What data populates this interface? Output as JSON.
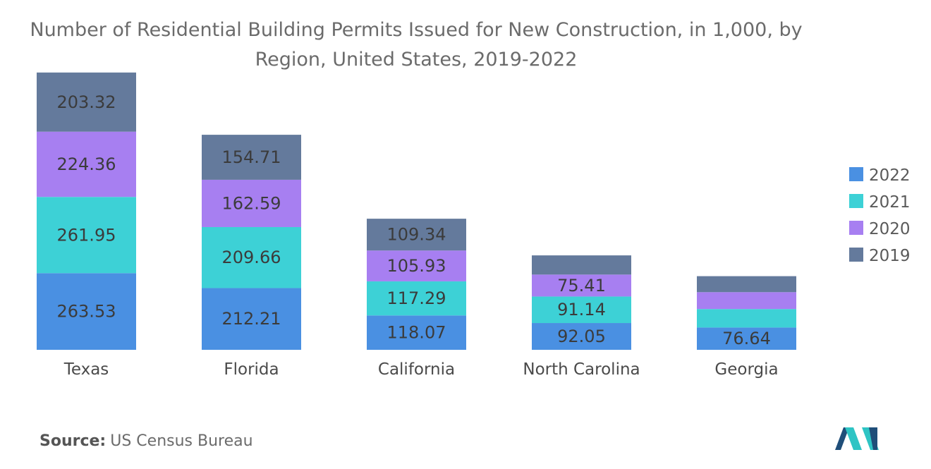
{
  "chart_data": {
    "type": "bar",
    "stacked": true,
    "title": "Number of Residential Building Permits Issued for New Construction, in 1,000, by Region, United States, 2019-2022",
    "categories": [
      "Texas",
      "Florida",
      "California",
      "North Carolina",
      "Georgia"
    ],
    "series": [
      {
        "name": "2022",
        "color": "#4a90e2",
        "values": [
          263.53,
          212.21,
          118.07,
          92.05,
          76.64
        ],
        "labels": [
          "263.53",
          "212.21",
          "118.07",
          "92.05",
          "76.64"
        ]
      },
      {
        "name": "2021",
        "color": "#3dd1d6",
        "values": [
          261.95,
          209.66,
          117.29,
          91.14,
          63.5
        ],
        "labels": [
          "261.95",
          "209.66",
          "117.29",
          "91.14",
          ""
        ]
      },
      {
        "name": "2020",
        "color": "#a77ff1",
        "values": [
          224.36,
          162.59,
          105.93,
          75.41,
          58.0
        ],
        "labels": [
          "224.36",
          "162.59",
          "105.93",
          "75.41",
          ""
        ]
      },
      {
        "name": "2019",
        "color": "#647a9c",
        "values": [
          203.32,
          154.71,
          109.34,
          66.0,
          55.0
        ],
        "labels": [
          "203.32",
          "154.71",
          "109.34",
          "",
          ""
        ]
      }
    ],
    "legend_position": "right",
    "grid": false,
    "ylim": [
      0,
      960
    ]
  },
  "source": {
    "label": "Source:",
    "text": "US Census Bureau"
  },
  "logo": {
    "name": "mordor-intelligence-logo",
    "colors": [
      "#1f4e79",
      "#2ec4c4"
    ]
  }
}
